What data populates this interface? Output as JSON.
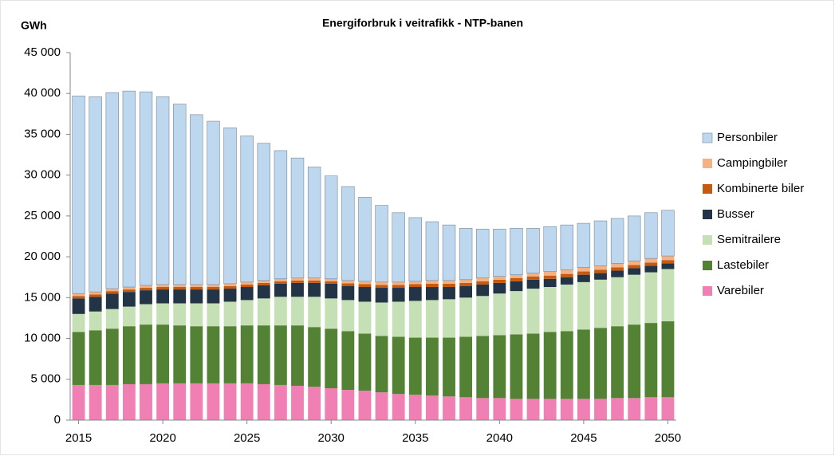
{
  "chart_data": {
    "type": "stacked_bar",
    "title": "Energiforbruk i veitrafikk - NTP-banen",
    "y_label": "GWh",
    "x": [
      2015,
      2016,
      2017,
      2018,
      2019,
      2020,
      2021,
      2022,
      2023,
      2024,
      2025,
      2026,
      2027,
      2028,
      2029,
      2030,
      2031,
      2032,
      2033,
      2034,
      2035,
      2036,
      2037,
      2038,
      2039,
      2040,
      2041,
      2042,
      2043,
      2044,
      2045,
      2046,
      2047,
      2048,
      2049,
      2050
    ],
    "xlim": [
      2014.5,
      2050.5
    ],
    "xticks": [
      2015,
      2020,
      2025,
      2030,
      2035,
      2040,
      2045,
      2050
    ],
    "ylim": [
      0,
      45000
    ],
    "yticks": [
      0,
      {
        "value": 5000,
        "label": "5 000"
      },
      {
        "value": 10000,
        "label": "10 000"
      },
      {
        "value": 15000,
        "label": "15 000"
      },
      {
        "value": 20000,
        "label": "20 000"
      },
      {
        "value": 25000,
        "label": "25 000"
      },
      {
        "value": 30000,
        "label": "30 000"
      },
      {
        "value": 35000,
        "label": "35 000"
      },
      {
        "value": 40000,
        "label": "40 000"
      },
      {
        "value": 45000,
        "label": "45 000"
      }
    ],
    "legend": "right",
    "series": [
      {
        "name": "Varebiler",
        "color": "#f07fb4",
        "values": [
          4300,
          4300,
          4300,
          4400,
          4400,
          4500,
          4500,
          4500,
          4500,
          4500,
          4500,
          4400,
          4300,
          4200,
          4100,
          3900,
          3700,
          3600,
          3400,
          3200,
          3100,
          3000,
          2900,
          2800,
          2700,
          2700,
          2600,
          2600,
          2600,
          2600,
          2600,
          2600,
          2700,
          2700,
          2800,
          2800
        ]
      },
      {
        "name": "Lastebiler",
        "color": "#548235",
        "values": [
          6500,
          6700,
          6900,
          7100,
          7300,
          7200,
          7100,
          7000,
          7000,
          7000,
          7100,
          7200,
          7300,
          7400,
          7300,
          7300,
          7200,
          7000,
          6900,
          7000,
          7000,
          7100,
          7200,
          7400,
          7600,
          7700,
          7900,
          8000,
          8200,
          8300,
          8500,
          8700,
          8800,
          9000,
          9100,
          9300
        ]
      },
      {
        "name": "Semitrailere",
        "color": "#c5e0b4",
        "values": [
          2200,
          2300,
          2400,
          2400,
          2500,
          2600,
          2700,
          2800,
          2800,
          3000,
          3100,
          3300,
          3500,
          3500,
          3700,
          3700,
          3800,
          3900,
          4100,
          4300,
          4500,
          4600,
          4700,
          4800,
          4900,
          5100,
          5300,
          5500,
          5500,
          5700,
          5800,
          5900,
          6000,
          6100,
          6200,
          6400
        ]
      },
      {
        "name": "Busser",
        "color": "#243447",
        "values": [
          1900,
          1800,
          1900,
          1800,
          1700,
          1700,
          1700,
          1700,
          1700,
          1600,
          1600,
          1600,
          1600,
          1700,
          1700,
          1800,
          1700,
          1800,
          1800,
          1700,
          1700,
          1600,
          1500,
          1400,
          1400,
          1300,
          1200,
          1100,
          1000,
          900,
          900,
          800,
          800,
          800,
          800,
          700
        ]
      },
      {
        "name": "Kombinerte biler",
        "color": "#c55a11",
        "values": [
          300,
          300,
          300,
          300,
          300,
          300,
          300,
          300,
          300,
          300,
          300,
          300,
          300,
          300,
          300,
          300,
          350,
          350,
          350,
          350,
          350,
          400,
          400,
          400,
          400,
          400,
          400,
          400,
          400,
          400,
          400,
          400,
          400,
          400,
          400,
          400
        ]
      },
      {
        "name": "Campingbiler",
        "color": "#f4b183",
        "values": [
          300,
          300,
          300,
          300,
          300,
          300,
          300,
          300,
          300,
          300,
          300,
          300,
          300,
          300,
          300,
          300,
          350,
          350,
          350,
          350,
          350,
          400,
          400,
          400,
          400,
          400,
          400,
          400,
          500,
          500,
          500,
          500,
          500,
          500,
          500,
          500
        ]
      },
      {
        "name": "Personbiler",
        "color": "#bdd7ee",
        "values": [
          24200,
          23900,
          24000,
          24000,
          23700,
          23000,
          22100,
          20800,
          20000,
          19100,
          17900,
          16800,
          15700,
          14700,
          13600,
          12600,
          11500,
          10300,
          9400,
          8500,
          7800,
          7200,
          6800,
          6300,
          6000,
          5800,
          5700,
          5500,
          5500,
          5500,
          5400,
          5500,
          5500,
          5500,
          5600,
          5600
        ]
      }
    ]
  }
}
